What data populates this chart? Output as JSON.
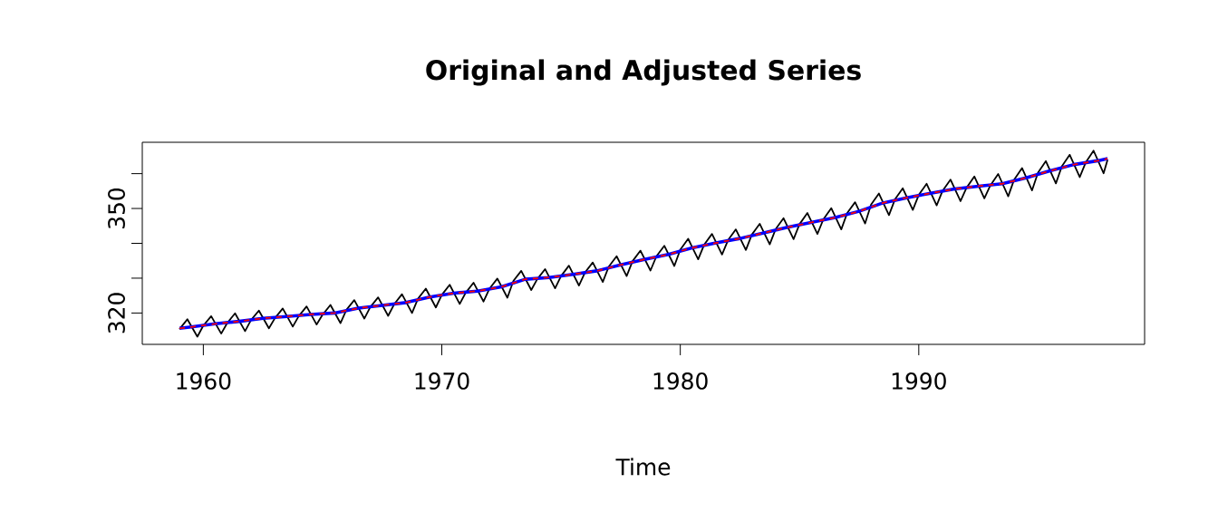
{
  "chart_data": {
    "type": "line",
    "title": "Original and Adjusted Series",
    "xlabel": "Time",
    "xlim": [
      1957.44,
      1999.47
    ],
    "ylim": [
      311.0,
      369.0
    ],
    "xticks": [
      1960,
      1970,
      1980,
      1990
    ],
    "yticks": [
      320,
      {
        "value": 330,
        "label": null
      },
      {
        "value": 340,
        "label": null
      },
      350,
      {
        "value": 360,
        "label": null
      }
    ],
    "grid": false,
    "series": [
      {
        "color": "#000000",
        "line_style": "solid",
        "x": [
          1959,
          1959.33,
          1959.75,
          1960,
          1960.33,
          1960.75,
          1961,
          1961.33,
          1961.75,
          1962,
          1962.33,
          1962.75,
          1963,
          1963.33,
          1963.75,
          1964,
          1964.33,
          1964.75,
          1965,
          1965.33,
          1965.75,
          1966,
          1966.33,
          1966.75,
          1967,
          1967.33,
          1967.75,
          1968,
          1968.33,
          1968.75,
          1969,
          1969.33,
          1969.75,
          1970,
          1970.33,
          1970.75,
          1971,
          1971.33,
          1971.75,
          1972,
          1972.33,
          1972.75,
          1973,
          1973.33,
          1973.75,
          1974,
          1974.33,
          1974.75,
          1975,
          1975.33,
          1975.75,
          1976,
          1976.33,
          1976.75,
          1977,
          1977.33,
          1977.75,
          1978,
          1978.33,
          1978.75,
          1979,
          1979.33,
          1979.75,
          1980,
          1980.33,
          1980.75,
          1981,
          1981.33,
          1981.75,
          1982,
          1982.33,
          1982.75,
          1983,
          1983.33,
          1983.75,
          1984,
          1984.33,
          1984.75,
          1985,
          1985.33,
          1985.75,
          1986,
          1986.33,
          1986.75,
          1987,
          1987.33,
          1987.75,
          1988,
          1988.33,
          1988.75,
          1989,
          1989.33,
          1989.75,
          1990,
          1990.33,
          1990.75,
          1991,
          1991.33,
          1991.75,
          1992,
          1992.33,
          1992.75,
          1993,
          1993.33,
          1993.75,
          1994,
          1994.33,
          1994.75,
          1995,
          1995.33,
          1995.75,
          1996,
          1996.33,
          1996.75,
          1997,
          1997.33,
          1997.75,
          1997.917
        ],
        "values": [
          315.4,
          318.2,
          313.2,
          316.4,
          319.1,
          314.1,
          317.1,
          319.9,
          314.8,
          318.0,
          320.7,
          315.6,
          318.5,
          321.3,
          316.1,
          319.1,
          321.9,
          316.7,
          319.5,
          322.3,
          317.1,
          320.9,
          323.7,
          318.4,
          321.7,
          324.5,
          319.2,
          322.5,
          325.4,
          320.0,
          324.1,
          327.0,
          321.6,
          325.2,
          328.1,
          322.6,
          325.8,
          328.7,
          323.3,
          327.0,
          329.9,
          324.4,
          329.2,
          332.1,
          326.6,
          329.7,
          332.6,
          327.1,
          330.6,
          333.6,
          327.9,
          331.6,
          334.5,
          328.9,
          333.3,
          336.3,
          330.6,
          334.9,
          337.9,
          332.2,
          336.3,
          339.3,
          333.5,
          338.2,
          341.3,
          335.4,
          339.6,
          342.7,
          336.8,
          340.9,
          344.0,
          338.1,
          342.5,
          345.6,
          339.7,
          344.1,
          347.2,
          341.2,
          345.5,
          348.7,
          342.7,
          346.9,
          350.1,
          344.0,
          348.7,
          351.8,
          345.7,
          351.1,
          354.3,
          348.1,
          352.6,
          355.8,
          349.6,
          353.9,
          357.1,
          350.9,
          355.1,
          358.3,
          352.1,
          355.9,
          359.2,
          352.9,
          356.6,
          359.9,
          353.5,
          358.3,
          361.6,
          355.2,
          360.3,
          363.6,
          357.2,
          362.1,
          365.4,
          359.0,
          363.2,
          366.6,
          360.1,
          364.0
        ]
      },
      {
        "color": "#0000ff",
        "line_style": "solid",
        "x": [
          1959,
          1959.5,
          1960.5,
          1961.5,
          1962.5,
          1963.5,
          1964.5,
          1965.5,
          1966.5,
          1967.5,
          1968.5,
          1969.5,
          1970.5,
          1971.5,
          1972.5,
          1973.5,
          1974.5,
          1975.5,
          1976.5,
          1977.5,
          1978.5,
          1979.5,
          1980.5,
          1981.5,
          1982.5,
          1983.5,
          1984.5,
          1985.5,
          1986.5,
          1987.5,
          1988.5,
          1989.5,
          1990.5,
          1991.5,
          1992.5,
          1993.5,
          1994.5,
          1995.5,
          1996.5,
          1997.5,
          1997.917
        ],
        "values": [
          315.6,
          316.0,
          316.9,
          317.6,
          318.5,
          319.0,
          319.6,
          320.0,
          321.4,
          322.2,
          323.0,
          324.6,
          325.7,
          326.3,
          327.5,
          329.7,
          330.2,
          331.1,
          332.1,
          333.8,
          335.4,
          336.8,
          338.7,
          340.1,
          341.4,
          343.0,
          344.6,
          346.0,
          347.4,
          349.2,
          351.6,
          353.1,
          354.4,
          355.6,
          356.4,
          357.1,
          358.8,
          360.8,
          362.6,
          363.7,
          364.3
        ]
      },
      {
        "color": "#ff0000",
        "line_style": "dashed",
        "x": [
          1959,
          1959.5,
          1960.5,
          1961.5,
          1962.5,
          1963.5,
          1964.5,
          1965.5,
          1966.5,
          1967.5,
          1968.5,
          1969.5,
          1970.5,
          1971.5,
          1972.5,
          1973.5,
          1974.5,
          1975.5,
          1976.5,
          1977.5,
          1978.5,
          1979.5,
          1980.5,
          1981.5,
          1982.5,
          1983.5,
          1984.5,
          1985.5,
          1986.5,
          1987.5,
          1988.5,
          1989.5,
          1990.5,
          1991.5,
          1992.5,
          1993.5,
          1994.5,
          1995.5,
          1996.5,
          1997.5,
          1997.917
        ],
        "values": [
          315.6,
          316.0,
          316.9,
          317.6,
          318.5,
          319.0,
          319.6,
          320.0,
          321.4,
          322.2,
          323.0,
          324.6,
          325.7,
          326.3,
          327.5,
          329.7,
          330.2,
          331.1,
          332.1,
          333.8,
          335.4,
          336.8,
          338.7,
          340.1,
          341.4,
          343.0,
          344.6,
          346.0,
          347.4,
          349.2,
          351.6,
          353.1,
          354.4,
          355.6,
          356.4,
          357.1,
          358.8,
          360.8,
          362.6,
          363.7,
          364.3
        ]
      }
    ]
  }
}
